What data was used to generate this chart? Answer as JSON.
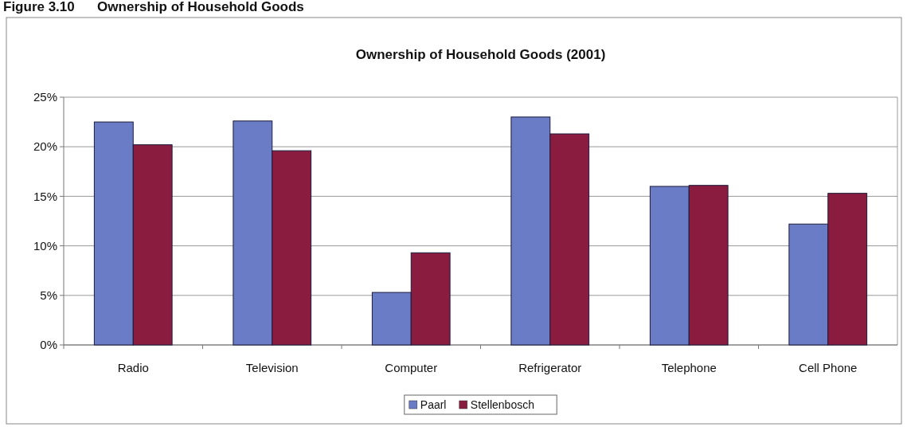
{
  "chart_data": {
    "type": "bar",
    "title": "Ownership of Household Goods (2001)",
    "annotations": [
      "Figure 3.10      Ownership of Household Goods"
    ],
    "categories": [
      "Radio",
      "Television",
      "Computer",
      "Refrigerator",
      "Telephone",
      "Cell Phone"
    ],
    "series": [
      {
        "name": "Paarl",
        "color": "#6b7cc6",
        "values": [
          22.5,
          22.6,
          5.3,
          23.0,
          16.0,
          12.2
        ]
      },
      {
        "name": "Stellenbosch",
        "color": "#8a1c40",
        "values": [
          20.2,
          19.6,
          9.3,
          21.3,
          16.1,
          15.3
        ]
      }
    ],
    "ylim": [
      0,
      25
    ],
    "yticks": [
      {
        "value": 0,
        "label": "0%"
      },
      {
        "value": 5,
        "label": "5%"
      },
      {
        "value": 10,
        "label": "10%"
      },
      {
        "value": 15,
        "label": "15%"
      },
      {
        "value": 20,
        "label": "20%"
      },
      {
        "value": 25,
        "label": "25%"
      }
    ],
    "grid": "y",
    "legend": "bottom"
  }
}
